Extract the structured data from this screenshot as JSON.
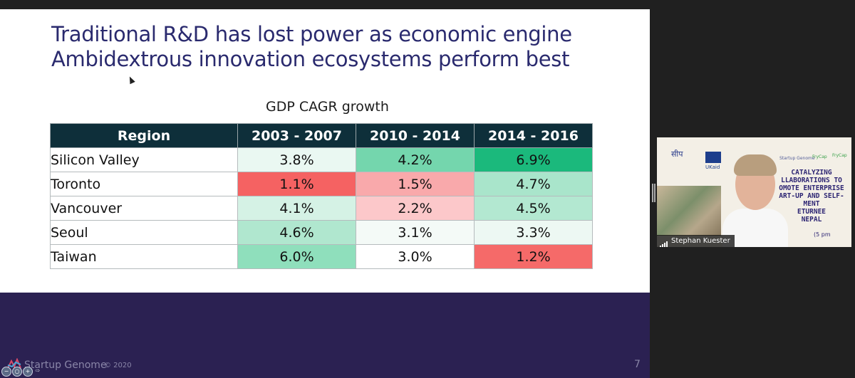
{
  "slide": {
    "title_line1": "Traditional R&D has lost power as economic engine",
    "title_line2": "Ambidextrous innovation ecosystems perform best",
    "table_caption": "GDP CAGR growth",
    "footer_brand": "Startup Genome",
    "footer_copyright": "© 2020",
    "page_number": "7"
  },
  "chart_data": {
    "type": "table",
    "title": "GDP CAGR growth",
    "columns": [
      "Region",
      "2003 - 2007",
      "2010 - 2014",
      "2014 - 2016"
    ],
    "rows": [
      {
        "region": "Silicon Valley",
        "values": [
          "3.8%",
          "4.2%",
          "6.9%"
        ],
        "colors": [
          "#eaf8f2",
          "#74d6ad",
          "#1bb97c"
        ]
      },
      {
        "region": "Toronto",
        "values": [
          "1.1%",
          "1.5%",
          "4.7%"
        ],
        "colors": [
          "#f56262",
          "#f9a9ab",
          "#a9e5cb"
        ]
      },
      {
        "region": "Vancouver",
        "values": [
          "4.1%",
          "2.2%",
          "4.5%"
        ],
        "colors": [
          "#d5f2e5",
          "#fcc8ca",
          "#b3e8d1"
        ]
      },
      {
        "region": "Seoul",
        "values": [
          "4.6%",
          "3.1%",
          "3.3%"
        ],
        "colors": [
          "#b0e7cf",
          "#f4faf7",
          "#edf8f3"
        ]
      },
      {
        "region": "Taiwan",
        "values": [
          "6.0%",
          "3.0%",
          "1.2%"
        ],
        "colors": [
          "#8fdfbc",
          "#ffffff",
          "#f56a69"
        ]
      }
    ]
  },
  "video": {
    "participant_name": "Stephan Kuester",
    "banner_text": [
      "CATALYZING",
      "LLABORATIONS TO",
      "OMOTE ENTERPRISE",
      "ART-UP AND SELF-",
      "MENT",
      "ETURNEE",
      "NEPAL"
    ],
    "banner_time": "(5 pm",
    "logo_nepal": "सीप",
    "logo_ukaid": "UKaid",
    "logo_sg": "Startup Genome",
    "logo_fc1": "FryCap",
    "logo_fc2": "FryCap"
  },
  "icons": {
    "zoom_out": "zoom-out-icon",
    "zoom_reset": "zoom-reset-icon",
    "zoom_in": "zoom-in-icon",
    "next": "next-arrow-icon",
    "signal": "signal-bars-icon"
  }
}
